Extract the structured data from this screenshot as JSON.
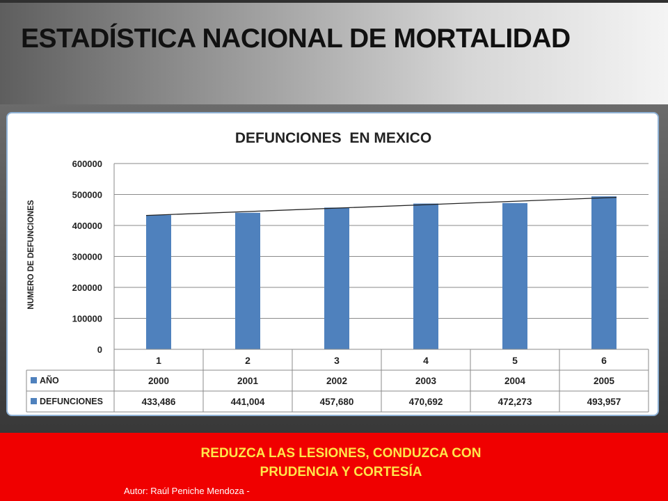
{
  "slide": {
    "title": "ESTADÍSTICA NACIONAL DE MORTALIDAD"
  },
  "chart_data": {
    "type": "bar",
    "title": "DEFUNCIONES  EN MEXICO",
    "ylabel": "NUMERO DE DEFUNCIONES",
    "xlabel": "",
    "ylim": [
      0,
      600000
    ],
    "yticks": [
      "600000",
      "500000",
      "400000",
      "300000",
      "200000",
      "100000",
      "0"
    ],
    "ytick_values": [
      600000,
      500000,
      400000,
      300000,
      200000,
      100000,
      0
    ],
    "categories": [
      "1",
      "2",
      "3",
      "4",
      "5",
      "6"
    ],
    "series": [
      {
        "name": "DEFUNCIONES",
        "values": [
          433486,
          441004,
          457680,
          470692,
          472273,
          493957
        ],
        "color": "#4f81bd"
      }
    ],
    "trendline": {
      "type": "linear",
      "color": "#222222"
    },
    "grid": true,
    "table": {
      "rows": [
        {
          "label": "AÑO",
          "cells": [
            "2000",
            "2001",
            "2002",
            "2003",
            "2004",
            "2005"
          ]
        },
        {
          "label": "DEFUNCIONES",
          "cells": [
            "433,486",
            "441,004",
            "457,680",
            "470,692",
            "472,273",
            "493,957"
          ]
        }
      ]
    }
  },
  "footer": {
    "message_line1": "REDUZCA LAS LESIONES, CONDUZCA  CON",
    "message_line2": "PRUDENCIA Y CORTESÍA",
    "author": "Autor: Raúl Peniche Mendoza  -"
  },
  "colors": {
    "footer_bg": "#f00000",
    "footer_text": "#ffe64a",
    "bar": "#4f81bd",
    "frame_border": "#8fb2d6"
  }
}
